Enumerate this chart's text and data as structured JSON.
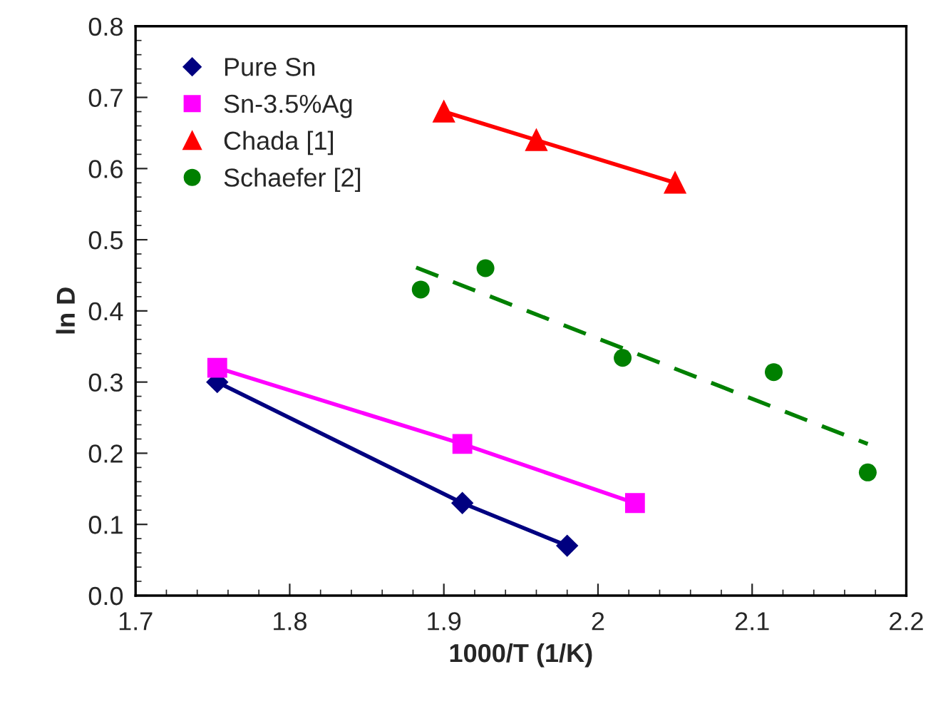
{
  "chart_data": {
    "type": "line",
    "xlabel": "1000/T (1/K)",
    "ylabel": "ln D",
    "xlim": [
      1.7,
      2.2
    ],
    "xticks": [
      1.7,
      1.8,
      1.9,
      {
        "value": 2.0,
        "label": "2"
      },
      2.1,
      2.2
    ],
    "ylim": [
      0.0,
      0.8
    ],
    "yticks": [
      {
        "value": 0.0,
        "label": "0.0"
      },
      0.1,
      0.2,
      0.3,
      0.4,
      0.5,
      0.6,
      0.7,
      0.8
    ],
    "grid": false,
    "legend": "top left",
    "series": [
      {
        "name": "Pure Sn",
        "marker": "diamond",
        "line_style": "solid",
        "color": "#000080",
        "x": [
          1.753,
          1.912,
          1.98
        ],
        "values": [
          0.3,
          0.13,
          0.07
        ]
      },
      {
        "name": "Sn-3.5%Ag",
        "type": "line",
        "marker": "square",
        "line_style": "solid",
        "color": "#ff00ff",
        "x": [
          1.753,
          1.912,
          2.024
        ],
        "values": [
          0.32,
          0.213,
          0.13
        ]
      },
      {
        "name": "Chada [1]",
        "type": "line",
        "marker": "triangle",
        "line_style": "solid",
        "color": "#ff0000",
        "x": [
          1.9,
          1.96,
          2.05
        ],
        "values": [
          0.68,
          0.64,
          0.58
        ]
      },
      {
        "name": "Schaefer [2]",
        "type": "scatter",
        "marker": "circle",
        "color": "#008000",
        "x": [
          1.885,
          1.927,
          2.016,
          2.114,
          2.175
        ],
        "values": [
          0.43,
          0.46,
          0.334,
          0.314,
          0.173
        ]
      },
      {
        "type": "line",
        "marker": "none",
        "line_style": "dashed",
        "color": "#008000",
        "x": [
          1.882,
          2.175
        ],
        "values": [
          0.461,
          0.213
        ]
      }
    ]
  }
}
